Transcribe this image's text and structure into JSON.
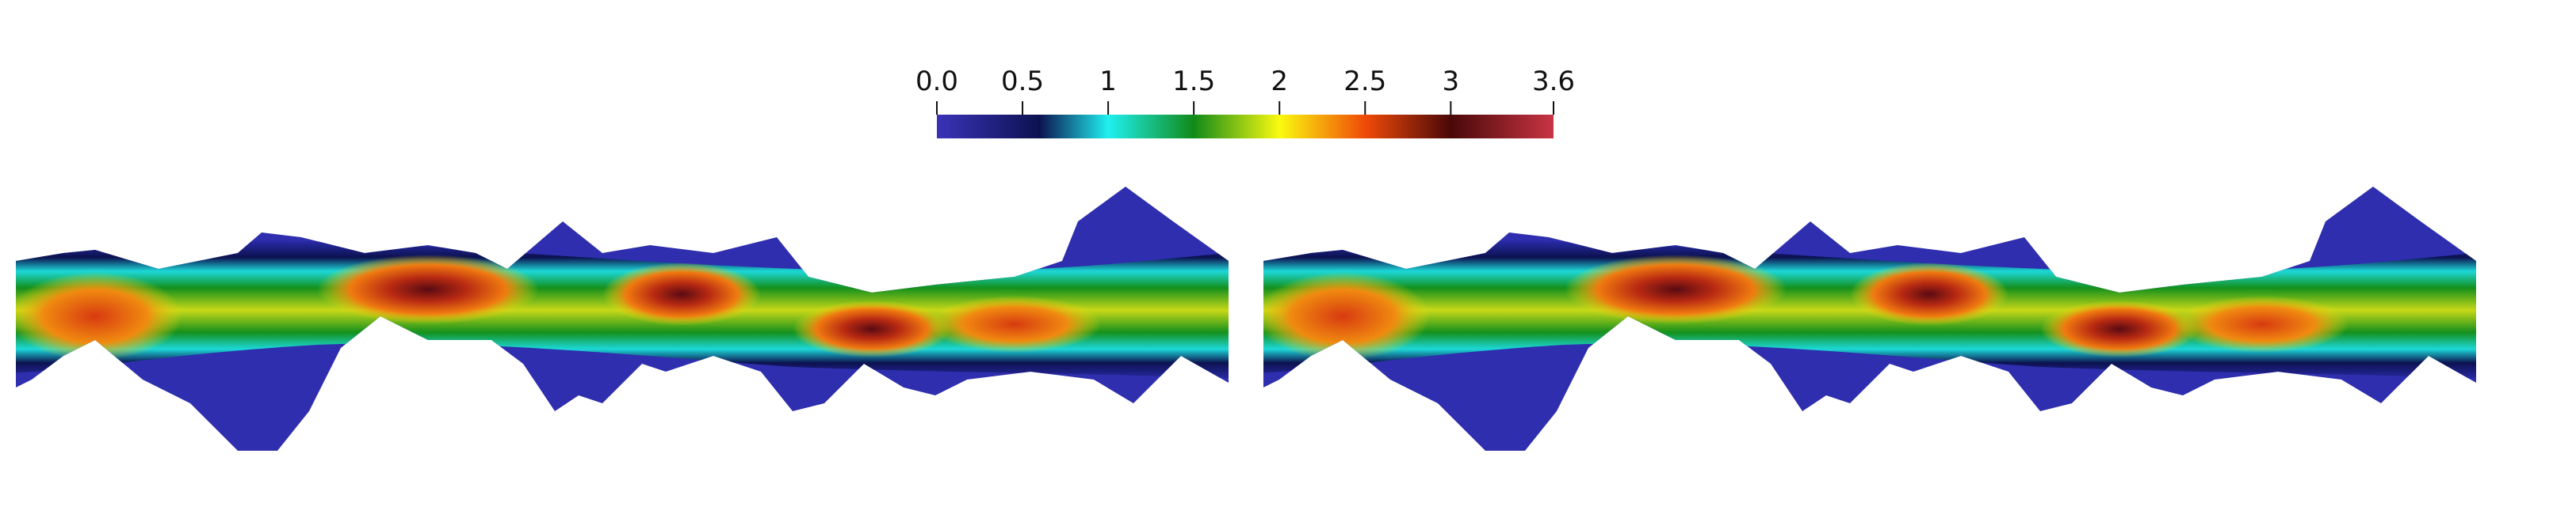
{
  "colorbar": {
    "range": [
      0,
      3.6
    ],
    "ticks": [
      {
        "value": 0,
        "label": "0.0"
      },
      0.5,
      1,
      1.5,
      2,
      2.5,
      3,
      3.6
    ],
    "colormap": [
      {
        "value": 0,
        "color": "#3a33b8"
      },
      {
        "value": 0.6,
        "color": "#0c1250"
      },
      {
        "value": 1,
        "color": "#1ff0f0"
      },
      {
        "value": 1.5,
        "color": "#118a18"
      },
      {
        "value": 2,
        "color": "#fafa10"
      },
      {
        "value": 2.5,
        "color": "#f04a08"
      },
      {
        "value": 3,
        "color": "#4a0808"
      },
      {
        "value": 3.6,
        "color": "#c83444"
      }
    ]
  }
}
